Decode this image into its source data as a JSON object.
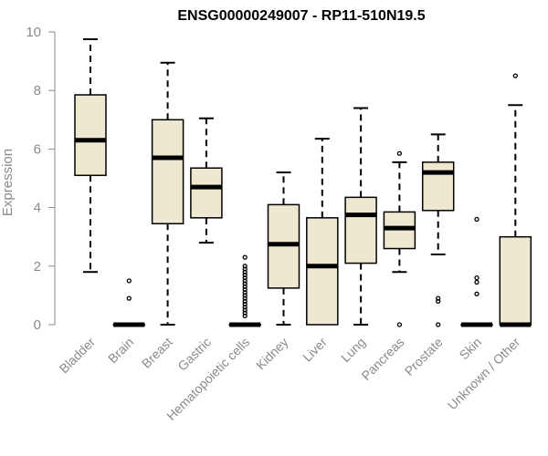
{
  "chart_data": {
    "type": "box",
    "title": "ENSG00000249007 - RP11-510N19.5",
    "xlabel": "",
    "ylabel": "Expression",
    "ylim": [
      0,
      10
    ],
    "yticks": [
      "0",
      "2",
      "4",
      "6",
      "8",
      "10"
    ],
    "box_fill": "#efe8d0",
    "box_stroke": "#000000",
    "axis_color": "#8a8a8a",
    "categories": [
      "Bladder",
      "Brain",
      "Breast",
      "Gastric",
      "Hematopoietic cells",
      "Kidney",
      "Liver",
      "Lung",
      "Pancreas",
      "Prostate",
      "Skin",
      "Unknown / Other"
    ],
    "boxes": [
      {
        "min": 1.8,
        "q1": 5.1,
        "median": 6.3,
        "q3": 7.85,
        "max": 9.75,
        "outliers": []
      },
      {
        "min": 0.0,
        "q1": 0.0,
        "median": 0.0,
        "q3": 0.0,
        "max": 0.0,
        "outliers": [
          1.5,
          0.9
        ]
      },
      {
        "min": 0.0,
        "q1": 3.45,
        "median": 5.7,
        "q3": 7.0,
        "max": 8.95,
        "outliers": []
      },
      {
        "min": 2.8,
        "q1": 3.65,
        "median": 4.7,
        "q3": 5.35,
        "max": 7.05,
        "outliers": []
      },
      {
        "min": 0.0,
        "q1": 0.0,
        "median": 0.0,
        "q3": 0.0,
        "max": 0.0,
        "outliers": [
          0.3,
          0.4,
          0.5,
          0.6,
          0.7,
          0.8,
          0.9,
          1.0,
          1.1,
          1.2,
          1.3,
          1.4,
          1.5,
          1.6,
          1.7,
          1.8,
          1.9,
          2.0,
          2.3
        ]
      },
      {
        "min": 0.0,
        "q1": 1.25,
        "median": 2.75,
        "q3": 4.1,
        "max": 5.2,
        "outliers": []
      },
      {
        "min": 0.0,
        "q1": 0.0,
        "median": 2.0,
        "q3": 3.65,
        "max": 6.35,
        "outliers": []
      },
      {
        "min": 0.0,
        "q1": 2.1,
        "median": 3.75,
        "q3": 4.35,
        "max": 7.4,
        "outliers": []
      },
      {
        "min": 1.8,
        "q1": 2.6,
        "median": 3.3,
        "q3": 3.85,
        "max": 5.55,
        "outliers": [
          5.85,
          0.0
        ]
      },
      {
        "min": 2.4,
        "q1": 3.9,
        "median": 5.2,
        "q3": 5.55,
        "max": 6.5,
        "outliers": [
          0.9,
          0.8,
          0.0
        ]
      },
      {
        "min": 0.0,
        "q1": 0.0,
        "median": 0.0,
        "q3": 0.0,
        "max": 0.0,
        "outliers": [
          3.6,
          1.6,
          1.45,
          1.05
        ]
      },
      {
        "min": 0.0,
        "q1": 0.0,
        "median": 0.0,
        "q3": 3.0,
        "max": 7.5,
        "outliers": [
          8.5
        ]
      }
    ]
  }
}
